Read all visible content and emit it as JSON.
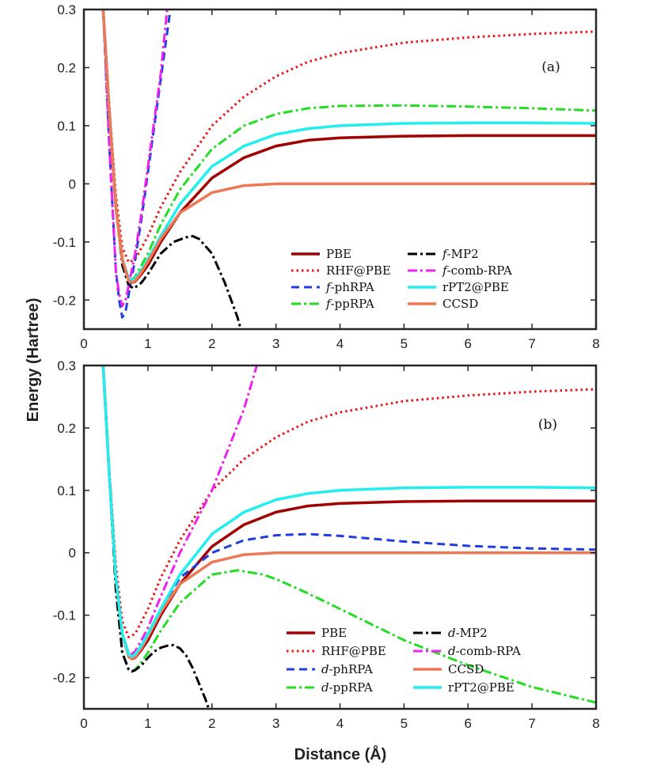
{
  "figure": {
    "ylabel": "Energy (Hartree)",
    "xlabel": "Distance (Å)"
  },
  "chart_data": [
    {
      "type": "line",
      "panel_tag": "(a)",
      "xlim": [
        0,
        8
      ],
      "ylim": [
        -0.25,
        0.3
      ],
      "xticks": [
        "0",
        "1",
        "2",
        "3",
        "4",
        "5",
        "6",
        "7",
        "8"
      ],
      "yticks": [
        "-0.2",
        "-0.1",
        "0",
        "0.1",
        "0.2",
        "0.3"
      ],
      "ytick_values": [
        -0.2,
        -0.1,
        0,
        0.1,
        0.2,
        0.3
      ],
      "legend_position": "bottom-right",
      "series": [
        {
          "name": "PBE",
          "prefix": "",
          "base": "PBE",
          "color": "#a00000",
          "dash": "",
          "width": 3.5,
          "x": [
            0.3,
            0.4,
            0.5,
            0.6,
            0.7,
            0.75,
            0.8,
            0.9,
            1.0,
            1.2,
            1.5,
            2.0,
            2.5,
            3.0,
            3.5,
            4.0,
            5.0,
            6.0,
            7.0,
            8.0
          ],
          "y": [
            0.3,
            0.12,
            -0.04,
            -0.13,
            -0.165,
            -0.17,
            -0.168,
            -0.155,
            -0.14,
            -0.1,
            -0.05,
            0.01,
            0.045,
            0.065,
            0.075,
            0.079,
            0.082,
            0.083,
            0.083,
            0.083
          ]
        },
        {
          "name": "RHF@PBE",
          "prefix": "",
          "base": "RHF@PBE",
          "color": "#ee1111",
          "dash": "2.5,4",
          "width": 3,
          "x": [
            0.3,
            0.4,
            0.5,
            0.6,
            0.7,
            0.8,
            0.9,
            1.0,
            1.2,
            1.5,
            2.0,
            2.5,
            3.0,
            3.5,
            4.0,
            5.0,
            6.0,
            7.0,
            8.0
          ],
          "y": [
            0.3,
            0.13,
            -0.02,
            -0.11,
            -0.135,
            -0.13,
            -0.11,
            -0.09,
            -0.04,
            0.02,
            0.1,
            0.15,
            0.185,
            0.21,
            0.225,
            0.243,
            0.252,
            0.258,
            0.262
          ]
        },
        {
          "name": "f-phRPA",
          "prefix": "f",
          "base": "-phRPA",
          "color": "#1f3fdd",
          "dash": "10,6",
          "width": 3,
          "x": [
            0.3,
            0.4,
            0.5,
            0.55,
            0.6,
            0.65,
            0.7,
            0.8,
            0.9,
            1.0,
            1.1,
            1.2,
            1.35
          ],
          "y": [
            0.3,
            0.06,
            -0.15,
            -0.2,
            -0.23,
            -0.22,
            -0.19,
            -0.13,
            -0.06,
            0.02,
            0.1,
            0.18,
            0.3
          ]
        },
        {
          "name": "f-ppRPA",
          "prefix": "f",
          "base": "-ppRPA",
          "color": "#22dd22",
          "dash": "12,4,3,4",
          "width": 3,
          "x": [
            0.3,
            0.4,
            0.5,
            0.6,
            0.7,
            0.75,
            0.8,
            0.9,
            1.0,
            1.2,
            1.5,
            2.0,
            2.5,
            3.0,
            3.5,
            4.0,
            5.0,
            6.0,
            7.0,
            8.0
          ],
          "y": [
            0.3,
            0.12,
            -0.04,
            -0.13,
            -0.163,
            -0.165,
            -0.16,
            -0.14,
            -0.12,
            -0.07,
            -0.01,
            0.06,
            0.1,
            0.12,
            0.13,
            0.134,
            0.135,
            0.133,
            0.13,
            0.126
          ]
        },
        {
          "name": "f-MP2",
          "prefix": "f",
          "base": "-MP2",
          "color": "#000000",
          "dash": "12,4,3,4",
          "width": 3,
          "x": [
            0.3,
            0.4,
            0.5,
            0.6,
            0.7,
            0.78,
            0.9,
            1.0,
            1.2,
            1.4,
            1.6,
            1.7,
            1.8,
            2.0,
            2.2,
            2.4,
            2.45
          ],
          "y": [
            0.3,
            0.12,
            -0.04,
            -0.14,
            -0.175,
            -0.18,
            -0.17,
            -0.155,
            -0.12,
            -0.1,
            -0.092,
            -0.09,
            -0.095,
            -0.12,
            -0.17,
            -0.23,
            -0.25
          ]
        },
        {
          "name": "f-comb-RPA",
          "prefix": "f",
          "base": "-comb-RPA",
          "color": "#ee22ee",
          "dash": "12,4,3,4",
          "width": 3,
          "x": [
            0.3,
            0.4,
            0.5,
            0.55,
            0.6,
            0.65,
            0.7,
            0.8,
            0.9,
            1.0,
            1.1,
            1.2,
            1.3
          ],
          "y": [
            0.3,
            0.06,
            -0.15,
            -0.19,
            -0.21,
            -0.2,
            -0.175,
            -0.12,
            -0.05,
            0.03,
            0.11,
            0.19,
            0.3
          ]
        },
        {
          "name": "rPT2@PBE",
          "prefix": "",
          "base": "rPT2@PBE",
          "color": "#22eeee",
          "dash": "",
          "width": 3.5,
          "x": [
            0.3,
            0.4,
            0.5,
            0.6,
            0.7,
            0.75,
            0.8,
            0.9,
            1.0,
            1.2,
            1.5,
            2.0,
            2.5,
            3.0,
            3.5,
            4.0,
            5.0,
            6.0,
            7.0,
            8.0
          ],
          "y": [
            0.3,
            0.12,
            -0.04,
            -0.13,
            -0.163,
            -0.166,
            -0.163,
            -0.148,
            -0.13,
            -0.09,
            -0.035,
            0.03,
            0.065,
            0.085,
            0.095,
            0.1,
            0.104,
            0.105,
            0.105,
            0.104
          ]
        },
        {
          "name": "CCSD",
          "prefix": "",
          "base": "CCSD",
          "color": "#ee7755",
          "dash": "",
          "width": 3.5,
          "x": [
            0.3,
            0.4,
            0.5,
            0.6,
            0.7,
            0.75,
            0.8,
            0.9,
            1.0,
            1.2,
            1.5,
            2.0,
            2.5,
            3.0,
            3.5,
            4.0,
            5.0,
            6.0,
            7.0,
            8.0
          ],
          "y": [
            0.3,
            0.12,
            -0.04,
            -0.13,
            -0.167,
            -0.17,
            -0.167,
            -0.152,
            -0.134,
            -0.095,
            -0.05,
            -0.015,
            -0.003,
            0.0,
            0.0,
            0.0,
            0.0,
            0.0,
            0.0,
            0.0
          ]
        }
      ]
    },
    {
      "type": "line",
      "panel_tag": "(b)",
      "xlim": [
        0,
        8
      ],
      "ylim": [
        -0.25,
        0.3
      ],
      "xticks": [
        "0",
        "1",
        "2",
        "3",
        "4",
        "5",
        "6",
        "7",
        "8"
      ],
      "yticks": [
        "-0.2",
        "-0.1",
        "0",
        "0.1",
        "0.2",
        "0.3"
      ],
      "ytick_values": [
        -0.2,
        -0.1,
        0,
        0.1,
        0.2,
        0.3
      ],
      "legend_position": "bottom-right",
      "series": [
        {
          "name": "PBE",
          "prefix": "",
          "base": "PBE",
          "color": "#a00000",
          "dash": "",
          "width": 3.5,
          "x": [
            0.3,
            0.4,
            0.5,
            0.6,
            0.7,
            0.75,
            0.8,
            0.9,
            1.0,
            1.2,
            1.5,
            2.0,
            2.5,
            3.0,
            3.5,
            4.0,
            5.0,
            6.0,
            7.0,
            8.0
          ],
          "y": [
            0.3,
            0.12,
            -0.04,
            -0.13,
            -0.165,
            -0.17,
            -0.168,
            -0.155,
            -0.14,
            -0.1,
            -0.05,
            0.01,
            0.045,
            0.065,
            0.075,
            0.079,
            0.082,
            0.083,
            0.083,
            0.083
          ]
        },
        {
          "name": "RHF@PBE",
          "prefix": "",
          "base": "RHF@PBE",
          "color": "#ee1111",
          "dash": "2.5,4",
          "width": 3,
          "x": [
            0.3,
            0.4,
            0.5,
            0.6,
            0.7,
            0.8,
            0.9,
            1.0,
            1.2,
            1.5,
            2.0,
            2.5,
            3.0,
            3.5,
            4.0,
            5.0,
            6.0,
            7.0,
            8.0
          ],
          "y": [
            0.3,
            0.13,
            -0.02,
            -0.11,
            -0.135,
            -0.13,
            -0.11,
            -0.09,
            -0.04,
            0.02,
            0.1,
            0.15,
            0.185,
            0.21,
            0.225,
            0.243,
            0.252,
            0.258,
            0.262
          ]
        },
        {
          "name": "d-phRPA",
          "prefix": "d",
          "base": "-phRPA",
          "color": "#1f3fdd",
          "dash": "10,6",
          "width": 3,
          "x": [
            0.3,
            0.4,
            0.5,
            0.6,
            0.7,
            0.75,
            0.8,
            0.9,
            1.0,
            1.2,
            1.5,
            2.0,
            2.5,
            3.0,
            3.5,
            4.0,
            5.0,
            6.0,
            7.0,
            8.0
          ],
          "y": [
            0.3,
            0.12,
            -0.04,
            -0.13,
            -0.165,
            -0.168,
            -0.165,
            -0.15,
            -0.13,
            -0.09,
            -0.04,
            0.0,
            0.02,
            0.028,
            0.03,
            0.027,
            0.018,
            0.011,
            0.007,
            0.005
          ]
        },
        {
          "name": "d-ppRPA",
          "prefix": "d",
          "base": "-ppRPA",
          "color": "#22dd22",
          "dash": "12,4,3,4",
          "width": 3,
          "x": [
            0.3,
            0.4,
            0.5,
            0.6,
            0.7,
            0.75,
            0.8,
            0.9,
            1.0,
            1.2,
            1.5,
            2.0,
            2.4,
            2.8,
            3.0,
            3.5,
            4.0,
            5.0,
            6.0,
            7.0,
            8.0
          ],
          "y": [
            0.3,
            0.12,
            -0.06,
            -0.16,
            -0.188,
            -0.19,
            -0.187,
            -0.175,
            -0.16,
            -0.125,
            -0.08,
            -0.035,
            -0.028,
            -0.035,
            -0.042,
            -0.065,
            -0.09,
            -0.14,
            -0.18,
            -0.215,
            -0.24
          ]
        },
        {
          "name": "d-MP2",
          "prefix": "d",
          "base": "-MP2",
          "color": "#000000",
          "dash": "12,4,3,4",
          "width": 3,
          "x": [
            0.3,
            0.4,
            0.5,
            0.6,
            0.7,
            0.75,
            0.8,
            0.9,
            1.0,
            1.1,
            1.2,
            1.3,
            1.4,
            1.5,
            1.6,
            1.7,
            1.8,
            1.9,
            1.95
          ],
          "y": [
            0.3,
            0.12,
            -0.06,
            -0.16,
            -0.187,
            -0.19,
            -0.188,
            -0.18,
            -0.168,
            -0.158,
            -0.152,
            -0.149,
            -0.148,
            -0.153,
            -0.165,
            -0.185,
            -0.21,
            -0.235,
            -0.25
          ]
        },
        {
          "name": "d-comb-RPA",
          "prefix": "d",
          "base": "-comb-RPA",
          "color": "#ee22ee",
          "dash": "12,4,3,4",
          "width": 3,
          "x": [
            0.3,
            0.4,
            0.5,
            0.6,
            0.7,
            0.75,
            0.8,
            0.9,
            1.0,
            1.2,
            1.5,
            2.0,
            2.5,
            2.7
          ],
          "y": [
            0.3,
            0.12,
            -0.04,
            -0.13,
            -0.16,
            -0.162,
            -0.158,
            -0.14,
            -0.12,
            -0.07,
            0.0,
            0.1,
            0.23,
            0.3
          ]
        },
        {
          "name": "CCSD",
          "prefix": "",
          "base": "CCSD",
          "color": "#ee7755",
          "dash": "",
          "width": 3.5,
          "x": [
            0.3,
            0.4,
            0.5,
            0.6,
            0.7,
            0.75,
            0.8,
            0.9,
            1.0,
            1.2,
            1.5,
            2.0,
            2.5,
            3.0,
            3.5,
            4.0,
            5.0,
            6.0,
            7.0,
            8.0
          ],
          "y": [
            0.3,
            0.12,
            -0.04,
            -0.13,
            -0.167,
            -0.17,
            -0.167,
            -0.152,
            -0.134,
            -0.095,
            -0.05,
            -0.015,
            -0.003,
            0.0,
            0.0,
            0.0,
            0.0,
            0.0,
            0.0,
            0.0
          ]
        },
        {
          "name": "rPT2@PBE",
          "prefix": "",
          "base": "rPT2@PBE",
          "color": "#22eeee",
          "dash": "",
          "width": 3.5,
          "x": [
            0.3,
            0.4,
            0.5,
            0.6,
            0.7,
            0.75,
            0.8,
            0.9,
            1.0,
            1.2,
            1.5,
            2.0,
            2.5,
            3.0,
            3.5,
            4.0,
            5.0,
            6.0,
            7.0,
            8.0
          ],
          "y": [
            0.3,
            0.12,
            -0.04,
            -0.13,
            -0.163,
            -0.166,
            -0.163,
            -0.148,
            -0.13,
            -0.09,
            -0.035,
            0.03,
            0.065,
            0.085,
            0.095,
            0.1,
            0.104,
            0.105,
            0.105,
            0.104
          ]
        }
      ]
    }
  ]
}
